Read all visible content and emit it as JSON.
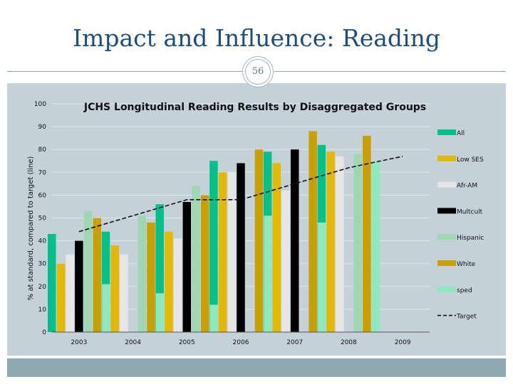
{
  "slide": {
    "title": "Impact and Influence: Reading",
    "page_number": "56"
  },
  "colors": {
    "panel": "#c5d1d8",
    "footer": "#8fa9b2",
    "title": "#1f4e79"
  },
  "chart_data": {
    "type": "bar",
    "title": "JCHS Longitudinal Reading Results by Disaggregated Groups",
    "xlabel": "",
    "ylabel": "% at standard, compared to target (line)",
    "ylim": [
      0,
      100
    ],
    "yticks": [
      0,
      10,
      20,
      30,
      40,
      50,
      60,
      70,
      80,
      90,
      100
    ],
    "categories": [
      "2003",
      "2004",
      "2005",
      "2006",
      "2007",
      "2008",
      "2009"
    ],
    "series": [
      {
        "name": "All",
        "color": "#00c08b",
        "values": [
          43,
          44,
          56,
          75,
          79,
          82,
          null
        ]
      },
      {
        "name": "Low SES",
        "color": "#e5b800",
        "values": [
          30,
          38,
          44,
          70,
          74,
          79,
          null
        ]
      },
      {
        "name": "Afr-AM",
        "color": "#e6e6e6",
        "values": [
          34,
          34,
          41,
          70,
          62,
          77,
          null
        ]
      },
      {
        "name": "Multcult",
        "color": "#000000",
        "values": [
          40,
          null,
          57,
          74,
          80,
          null,
          null
        ]
      },
      {
        "name": "Hispanic",
        "color": "#9fd6b4",
        "values": [
          53,
          51,
          64,
          null,
          null,
          78,
          null
        ]
      },
      {
        "name": "White",
        "color": "#c9a000",
        "values": [
          50,
          48,
          60,
          80,
          88,
          86,
          null
        ]
      },
      {
        "name": "sped",
        "color": "#8ee8c0",
        "values": [
          21,
          17,
          12,
          51,
          48,
          75,
          null
        ]
      }
    ],
    "target": {
      "name": "Target",
      "color": "#111111",
      "style": "dashed",
      "x": [
        2003,
        2005,
        2006,
        2008,
        2009
      ],
      "y": [
        44,
        58,
        58,
        72,
        77
      ]
    },
    "legend": {
      "placement": "right",
      "entries": [
        "All",
        "Low SES",
        "Afr-AM",
        "Multcult",
        "Hispanic",
        "White",
        "sped",
        "Target"
      ]
    },
    "grid": true
  }
}
